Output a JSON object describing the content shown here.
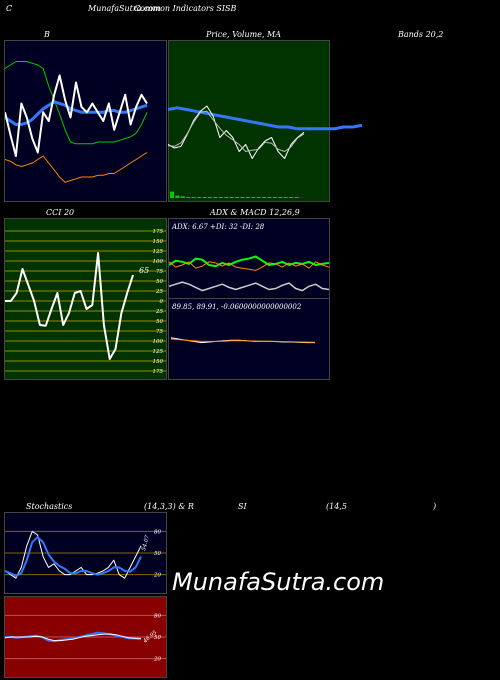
{
  "header": {
    "left": "C",
    "title": "MunafaSutra.com",
    "subtitle": "Common Indicators SISB"
  },
  "panel_labels": {
    "bands_b": "B",
    "price_title": "Price, Volume, MA",
    "bands_params": "Bands 20,2",
    "cci": "CCI 20",
    "adx_macd": "ADX  & MACD 12,26,9",
    "stoch": "Stochastics",
    "stoch_params": "(14,3,3) & R",
    "si": "SI",
    "rsi_params": "(14,5",
    "rsi_close": ")"
  },
  "watermark": "MunafaSutra.com",
  "colors": {
    "navy_bg": "#000022",
    "green_bg": "#003300",
    "olive_bg": "#003300",
    "rsi_bg": "#880000",
    "upper_band": "#00cc00",
    "mid_band": "#3377ff",
    "lower_band": "#ff8800",
    "price": "#ffffff",
    "adx_green": "#00ff00",
    "adx_orange": "#ff8800"
  },
  "chart_data": [
    {
      "id": "bollinger",
      "type": "line",
      "series": [
        {
          "role": "upper",
          "values": [
            70,
            72,
            74,
            74,
            74,
            73,
            72,
            70,
            60,
            52,
            44,
            35,
            28,
            27,
            27,
            27,
            27,
            28,
            28,
            28,
            28,
            29,
            30,
            31,
            33,
            38,
            45
          ]
        },
        {
          "role": "middle",
          "values": [
            42,
            40,
            38,
            38,
            39,
            41,
            44,
            47,
            49,
            51,
            50,
            49,
            47,
            46,
            45,
            45,
            45,
            45,
            45,
            46,
            46,
            45,
            45,
            46,
            47,
            48,
            49
          ]
        },
        {
          "role": "lower",
          "values": [
            18,
            17,
            15,
            14,
            15,
            16,
            18,
            20,
            16,
            12,
            8,
            5,
            6,
            7,
            8,
            8,
            8,
            9,
            9,
            10,
            10,
            12,
            14,
            16,
            18,
            20,
            22
          ]
        },
        {
          "role": "price",
          "values": [
            45,
            32,
            20,
            50,
            42,
            30,
            22,
            45,
            40,
            55,
            66,
            52,
            42,
            62,
            48,
            45,
            50,
            45,
            40,
            50,
            35,
            45,
            55,
            38,
            48,
            55,
            50
          ]
        }
      ]
    },
    {
      "id": "price_volume_ma",
      "type": "line",
      "series": [
        {
          "role": "price",
          "values": [
            26,
            24,
            25,
            32,
            40,
            45,
            48,
            42,
            30,
            34,
            30,
            22,
            26,
            18,
            24,
            28,
            30,
            22,
            18,
            26,
            30,
            33
          ]
        },
        {
          "role": "ma",
          "values": [
            46,
            47,
            46,
            45,
            44,
            43,
            42,
            41,
            40,
            39,
            38,
            37,
            36,
            36,
            35,
            35,
            35,
            35,
            35,
            36,
            36,
            37
          ]
        }
      ],
      "volume": [
        0.8,
        0.3,
        0.2,
        0.1,
        0.1,
        0.1,
        0.1,
        0.1,
        0.1,
        0.1,
        0.1,
        0.1,
        0.1,
        0.1,
        0.1,
        0.1,
        0.1,
        0.1,
        0.1,
        0.1,
        0.1,
        0.1,
        0.1,
        0.1
      ]
    },
    {
      "id": "cci",
      "type": "line",
      "title": "CCI 20",
      "ylim": [
        -175,
        175
      ],
      "ticks": [
        "175",
        "150",
        "125",
        "100",
        "75",
        "50",
        "25",
        "0",
        "25",
        "50",
        "75",
        "100",
        "125",
        "150",
        "175"
      ],
      "series": [
        {
          "role": "cci",
          "values": [
            0,
            0,
            20,
            80,
            40,
            0,
            -60,
            -62,
            -20,
            20,
            -60,
            -30,
            20,
            25,
            -20,
            -10,
            120,
            -60,
            -145,
            -120,
            -30,
            20,
            65
          ]
        }
      ],
      "annotation": "65"
    },
    {
      "id": "adx",
      "type": "line",
      "title": "ADX: 6.67  +DI: 32  -DI: 28",
      "series": [
        {
          "role": "+di",
          "values": [
            30,
            34,
            33,
            31,
            36,
            35,
            30,
            29,
            32,
            30,
            33,
            35,
            36,
            38,
            34,
            30,
            31,
            33,
            30,
            32,
            31,
            33,
            30,
            31,
            32
          ]
        },
        {
          "role": "-di",
          "values": [
            33,
            28,
            30,
            33,
            27,
            29,
            33,
            32,
            29,
            32,
            28,
            27,
            26,
            25,
            28,
            32,
            31,
            28,
            32,
            29,
            31,
            27,
            33,
            30,
            28
          ]
        },
        {
          "role": "adx",
          "values": [
            10,
            12,
            14,
            12,
            9,
            6,
            8,
            10,
            12,
            9,
            7,
            9,
            11,
            13,
            10,
            7,
            8,
            11,
            13,
            8,
            6,
            10,
            12,
            8,
            7
          ]
        }
      ]
    },
    {
      "id": "macd",
      "type": "line",
      "title": "89.85,  89.91,  -0.0600000000000002",
      "series": [
        {
          "role": "macd",
          "values": [
            0.6,
            0.5,
            0.4,
            0.3,
            0.2,
            0.25,
            0.3,
            0.35,
            0.4,
            0.4,
            0.35,
            0.3,
            0.3,
            0.3,
            0.28,
            0.25,
            0.25,
            0.22,
            0.2,
            0.2
          ]
        },
        {
          "role": "signal",
          "values": [
            0.5,
            0.45,
            0.4,
            0.35,
            0.3,
            0.3,
            0.3,
            0.32,
            0.35,
            0.36,
            0.35,
            0.33,
            0.32,
            0.31,
            0.3,
            0.28,
            0.27,
            0.25,
            0.24,
            0.23
          ]
        }
      ]
    },
    {
      "id": "stochastics",
      "type": "line",
      "ticks": [
        "80",
        "50",
        "20"
      ],
      "series": [
        {
          "role": "k",
          "values": [
            25,
            20,
            15,
            30,
            60,
            80,
            75,
            45,
            30,
            35,
            25,
            20,
            20,
            25,
            30,
            20,
            20,
            22,
            25,
            30,
            40,
            20,
            15,
            30,
            45,
            60
          ]
        },
        {
          "role": "d",
          "values": [
            25,
            22,
            18,
            22,
            40,
            65,
            72,
            65,
            48,
            38,
            32,
            28,
            22,
            22,
            25,
            25,
            22,
            20,
            22,
            25,
            30,
            30,
            25,
            24,
            30,
            45
          ]
        }
      ],
      "annotation": "54.07"
    },
    {
      "id": "rsi",
      "type": "line",
      "ticks": [
        "80",
        "50",
        "20"
      ],
      "series": [
        {
          "role": "rsi",
          "values": [
            50,
            50,
            49,
            50,
            51,
            52,
            50,
            45,
            44,
            46,
            47,
            48,
            50,
            52,
            54,
            56,
            55,
            54,
            52,
            50,
            48,
            48,
            47
          ]
        },
        {
          "role": "ma",
          "values": [
            49,
            50,
            50,
            50,
            50,
            51,
            50,
            47,
            45,
            45,
            46,
            47,
            49,
            51,
            52,
            53,
            54,
            54,
            53,
            51,
            49,
            48,
            48
          ]
        }
      ],
      "annotation": "46.95"
    }
  ]
}
